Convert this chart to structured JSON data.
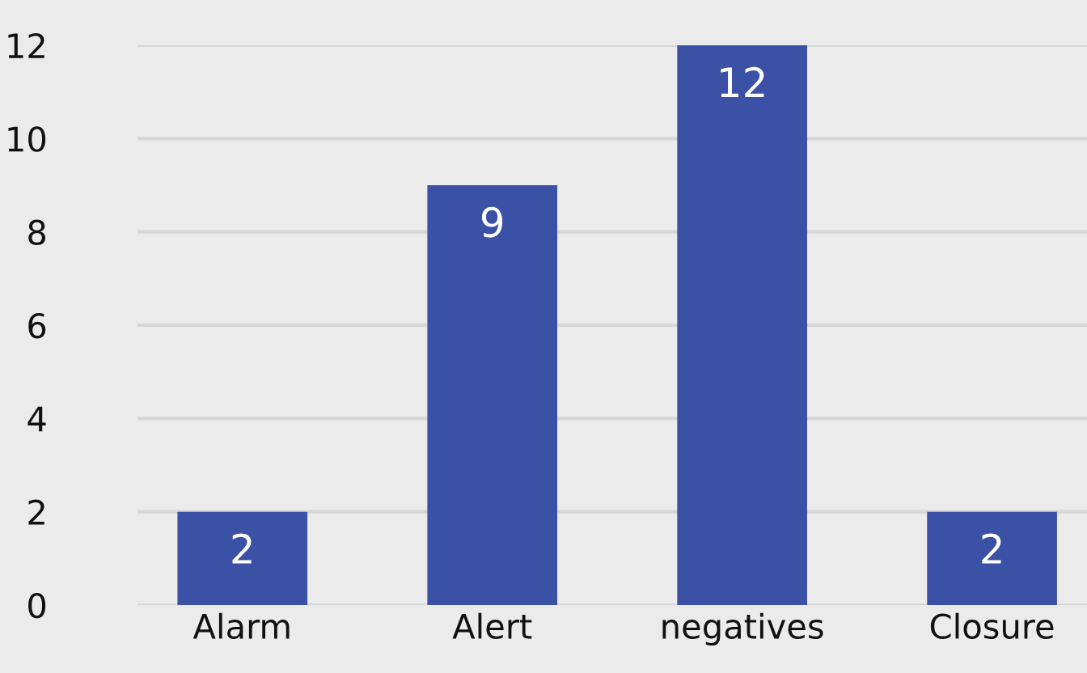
{
  "chart_data": {
    "type": "bar",
    "categories": [
      "Alarm",
      "Alert",
      "negatives",
      "Closure"
    ],
    "values": [
      2,
      9,
      12,
      2
    ],
    "color": "#3a51a5",
    "ylim": [
      0,
      12
    ],
    "yticks": [
      0,
      2,
      4,
      6,
      8,
      10,
      12
    ],
    "grid": "y",
    "data_labels": true
  }
}
